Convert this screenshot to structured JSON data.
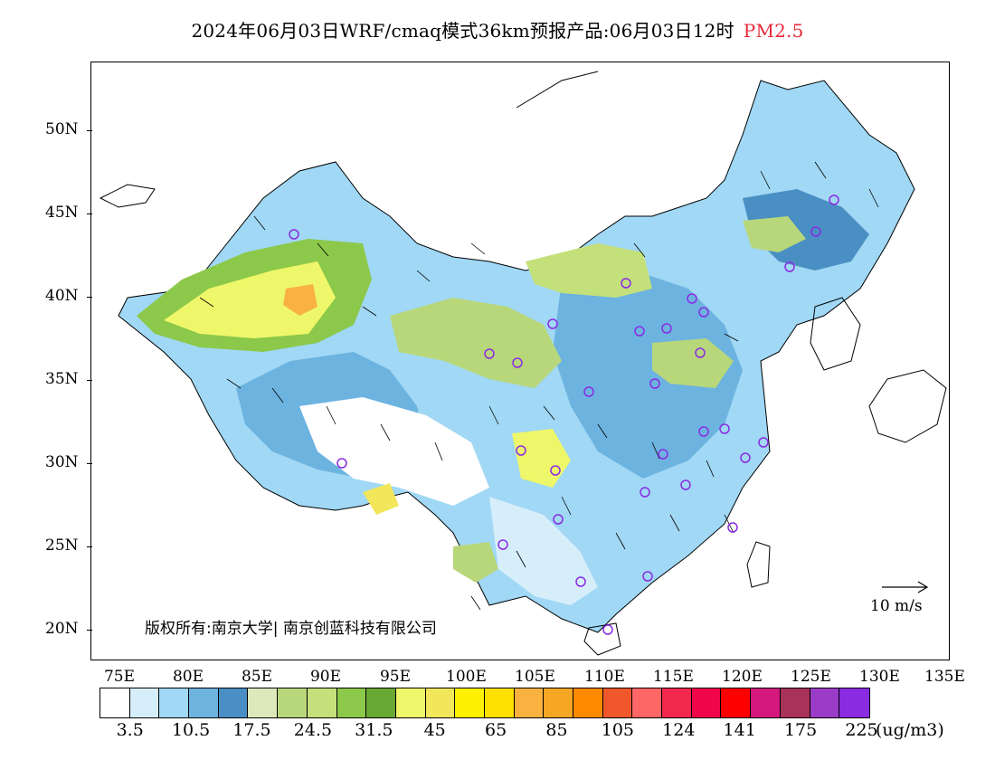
{
  "title": {
    "main": "2024年06月03日WRF/cmaq模式36km预报产品:06月03日12时",
    "pollutant": "PM2.5",
    "pollutant_color": "#e8283a"
  },
  "map": {
    "lat_labels": [
      "50N",
      "45N",
      "40N",
      "35N",
      "30N",
      "25N",
      "20N"
    ],
    "lon_labels": [
      "75E",
      "80E",
      "85E",
      "90E",
      "95E",
      "100E",
      "105E",
      "110E",
      "115E",
      "120E",
      "125E",
      "130E",
      "135E"
    ],
    "copyright": "版权所有:南京大学| 南京创蓝科技有限公司",
    "wind_reference": "10 m/s"
  },
  "colorbar": {
    "colors": [
      "#ffffff",
      "#d6eefa",
      "#a0d8f5",
      "#6cb3e0",
      "#4a8fc4",
      "#dde9bb",
      "#b8d77a",
      "#c4e07a",
      "#8cc84a",
      "#6aa834",
      "#eef76a",
      "#f2e65a",
      "#fff200",
      "#ffe000",
      "#f9b240",
      "#f5a623",
      "#ff8a00",
      "#f0582b",
      "#ff6666",
      "#f2284e",
      "#f0054a",
      "#ff0000",
      "#d4187e",
      "#a8325a",
      "#9b3cc8",
      "#8a2be2"
    ],
    "labels": [
      "3.5",
      "10.5",
      "17.5",
      "24.5",
      "31.5",
      "45",
      "65",
      "85",
      "105",
      "124",
      "141",
      "175",
      "225"
    ],
    "unit": "(ug/m3)"
  }
}
